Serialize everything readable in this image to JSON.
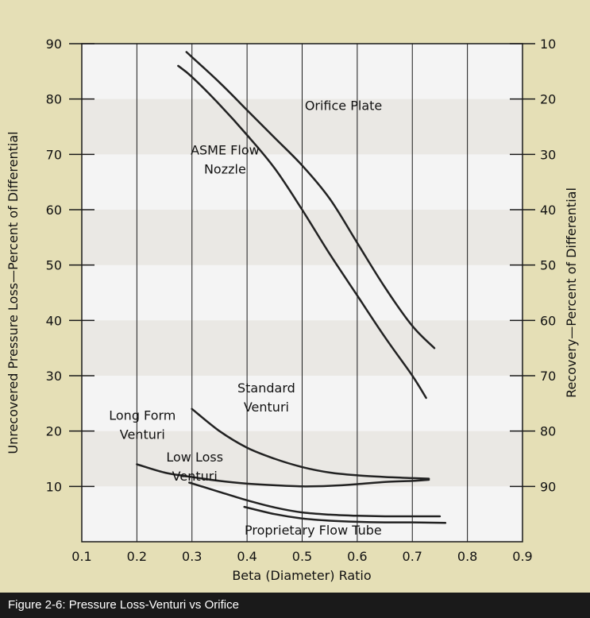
{
  "caption": "Figure 2-6: Pressure Loss-Venturi vs Orifice",
  "colors": {
    "page_bg": "#e5dfb6",
    "plot_bg": "#f4f4f4",
    "band": "#eae8e4",
    "grid": "#1a1a1a",
    "curve": "#222222",
    "caption_bg": "#1a1a1a"
  },
  "chart_data": {
    "type": "line",
    "xlabel": "Beta (Diameter) Ratio",
    "ylabel": "Unrecovered Pressure Loss—Percent of Differential",
    "ylabel_right": "Recovery—Percent of Differential",
    "xlim": [
      0.1,
      0.9
    ],
    "ylim": [
      0,
      90
    ],
    "x_ticks": [
      "0.1",
      "0.2",
      "0.3",
      "0.4",
      "0.5",
      "0.6",
      "0.7",
      "0.8",
      "0.9"
    ],
    "y_ticks": [
      "10",
      "20",
      "30",
      "40",
      "50",
      "60",
      "70",
      "80",
      "90"
    ],
    "y_ticks_right": [
      "90",
      "80",
      "70",
      "60",
      "50",
      "40",
      "30",
      "20",
      "10"
    ],
    "grid": true,
    "series": [
      {
        "name": "Orifice Plate",
        "label_lines": [
          "Orifice Plate"
        ],
        "label_at": [
          0.575,
          78
        ],
        "points": [
          [
            0.29,
            88.5
          ],
          [
            0.35,
            83
          ],
          [
            0.4,
            78
          ],
          [
            0.45,
            73
          ],
          [
            0.5,
            68
          ],
          [
            0.55,
            62
          ],
          [
            0.6,
            54
          ],
          [
            0.65,
            46
          ],
          [
            0.7,
            39
          ],
          [
            0.74,
            35
          ]
        ]
      },
      {
        "name": "ASME Flow Nozzle",
        "label_lines": [
          "ASME Flow",
          "Nozzle"
        ],
        "label_at": [
          0.36,
          70
        ],
        "points": [
          [
            0.275,
            86
          ],
          [
            0.3,
            84
          ],
          [
            0.35,
            79
          ],
          [
            0.4,
            73.5
          ],
          [
            0.45,
            67.5
          ],
          [
            0.5,
            60
          ],
          [
            0.55,
            52
          ],
          [
            0.6,
            44.5
          ],
          [
            0.65,
            37
          ],
          [
            0.7,
            30
          ],
          [
            0.725,
            26
          ]
        ]
      },
      {
        "name": "Standard Venturi",
        "label_lines": [
          "Standard",
          "Venturi"
        ],
        "label_at": [
          0.435,
          27
        ],
        "points": [
          [
            0.3,
            24
          ],
          [
            0.35,
            20
          ],
          [
            0.4,
            17
          ],
          [
            0.45,
            15
          ],
          [
            0.5,
            13.5
          ],
          [
            0.55,
            12.5
          ],
          [
            0.6,
            12
          ],
          [
            0.65,
            11.7
          ],
          [
            0.7,
            11.5
          ],
          [
            0.73,
            11.4
          ]
        ]
      },
      {
        "name": "Long Form Venturi",
        "label_lines": [
          "Long Form",
          "Venturi"
        ],
        "label_at": [
          0.21,
          22
        ],
        "points": [
          [
            0.2,
            14
          ],
          [
            0.25,
            12.5
          ],
          [
            0.3,
            11.7
          ],
          [
            0.35,
            11
          ],
          [
            0.4,
            10.5
          ],
          [
            0.45,
            10.2
          ],
          [
            0.5,
            10
          ],
          [
            0.55,
            10.1
          ],
          [
            0.6,
            10.4
          ],
          [
            0.65,
            10.8
          ],
          [
            0.7,
            11
          ],
          [
            0.73,
            11.2
          ]
        ]
      },
      {
        "name": "Low Loss Venturi",
        "label_lines": [
          "Low Loss",
          "Venturi"
        ],
        "label_at": [
          0.305,
          14.5
        ],
        "points": [
          [
            0.295,
            10.7
          ],
          [
            0.35,
            9
          ],
          [
            0.4,
            7.5
          ],
          [
            0.45,
            6.2
          ],
          [
            0.5,
            5.3
          ],
          [
            0.55,
            4.9
          ],
          [
            0.6,
            4.7
          ],
          [
            0.65,
            4.6
          ],
          [
            0.7,
            4.6
          ],
          [
            0.75,
            4.6
          ]
        ]
      },
      {
        "name": "Proprietary Flow Tube",
        "label_lines": [
          "Proprietary Flow Tube"
        ],
        "label_at": [
          0.52,
          1.3
        ],
        "points": [
          [
            0.395,
            6.3
          ],
          [
            0.45,
            5
          ],
          [
            0.5,
            4.2
          ],
          [
            0.55,
            3.8
          ],
          [
            0.6,
            3.6
          ],
          [
            0.65,
            3.5
          ],
          [
            0.7,
            3.5
          ],
          [
            0.76,
            3.4
          ]
        ]
      }
    ]
  }
}
